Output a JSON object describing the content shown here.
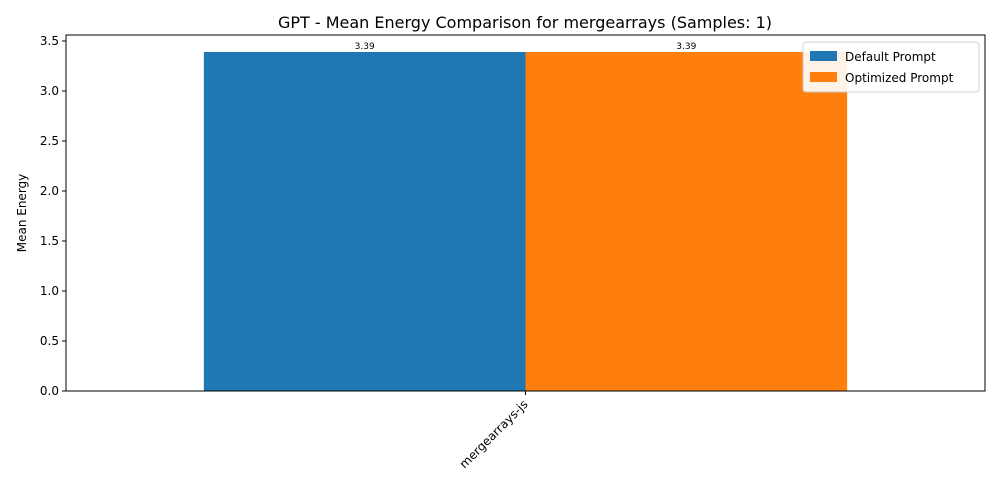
{
  "chart_data": {
    "type": "bar",
    "title": "GPT - Mean Energy Comparison for mergearrays (Samples: 1)",
    "xlabel": "",
    "ylabel": "Mean Energy",
    "categories": [
      "mergearrays-js"
    ],
    "series": [
      {
        "name": "Default Prompt",
        "values": [
          3.39
        ],
        "color": "#1f77b4"
      },
      {
        "name": "Optimized Prompt",
        "values": [
          3.39
        ],
        "color": "#ff7f0e"
      }
    ],
    "ylim": [
      0,
      3.56
    ],
    "yticks": [
      0.0,
      0.5,
      1.0,
      1.5,
      2.0,
      2.5,
      3.0,
      3.5
    ],
    "ytick_labels": [
      "0.0",
      "0.5",
      "1.0",
      "1.5",
      "2.0",
      "2.5",
      "3.0",
      "3.5"
    ],
    "value_labels": [
      "3.39",
      "3.39"
    ],
    "legend_position": "top-right",
    "grid": false
  }
}
